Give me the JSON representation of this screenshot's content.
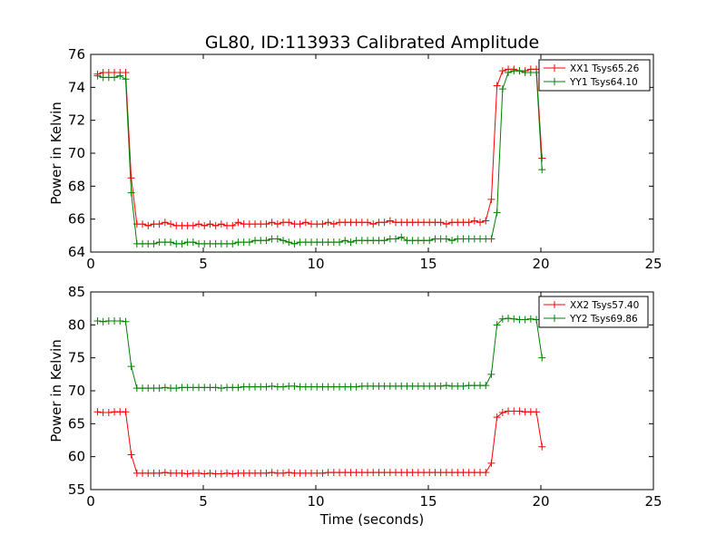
{
  "chart_data": [
    {
      "type": "line",
      "title": "GL80, ID:113933 Calibrated Amplitude",
      "xlabel": "",
      "ylabel": "Power in Kelvin",
      "xlim": [
        0,
        25
      ],
      "ylim": [
        64,
        76
      ],
      "xticks": [
        "0",
        "5",
        "10",
        "15",
        "20",
        "25"
      ],
      "yticks": [
        "64",
        "66",
        "68",
        "70",
        "72",
        "74",
        "76"
      ],
      "grid": false,
      "legend": "top-right",
      "series": [
        {
          "name": "XX1 Tsys65.26",
          "color": "#ff0000",
          "x": [
            0.3,
            0.55,
            0.8,
            1.05,
            1.3,
            1.55,
            1.8,
            2.05,
            2.3,
            2.55,
            2.8,
            3.05,
            3.3,
            3.55,
            3.8,
            4.05,
            4.3,
            4.55,
            4.8,
            5.05,
            5.3,
            5.55,
            5.8,
            6.05,
            6.3,
            6.55,
            6.8,
            7.05,
            7.3,
            7.55,
            7.8,
            8.05,
            8.3,
            8.55,
            8.8,
            9.05,
            9.3,
            9.55,
            9.8,
            10.05,
            10.3,
            10.55,
            10.8,
            11.05,
            11.3,
            11.55,
            11.8,
            12.05,
            12.3,
            12.55,
            12.8,
            13.05,
            13.3,
            13.55,
            13.8,
            14.05,
            14.3,
            14.55,
            14.8,
            15.05,
            15.3,
            15.55,
            15.8,
            16.05,
            16.3,
            16.55,
            16.8,
            17.05,
            17.3,
            17.55,
            17.8,
            18.05,
            18.3,
            18.55,
            18.8,
            19.05,
            19.3,
            19.55,
            19.8,
            20.05
          ],
          "y": [
            74.8,
            74.9,
            74.9,
            74.9,
            74.9,
            74.9,
            68.5,
            65.7,
            65.7,
            65.6,
            65.7,
            65.7,
            65.8,
            65.7,
            65.6,
            65.6,
            65.6,
            65.6,
            65.7,
            65.6,
            65.7,
            65.6,
            65.7,
            65.6,
            65.6,
            65.8,
            65.7,
            65.7,
            65.7,
            65.7,
            65.7,
            65.8,
            65.7,
            65.8,
            65.8,
            65.7,
            65.7,
            65.8,
            65.7,
            65.7,
            65.7,
            65.8,
            65.7,
            65.8,
            65.8,
            65.8,
            65.8,
            65.8,
            65.8,
            65.7,
            65.8,
            65.8,
            65.9,
            65.8,
            65.8,
            65.8,
            65.8,
            65.8,
            65.8,
            65.8,
            65.8,
            65.8,
            65.7,
            65.8,
            65.8,
            65.8,
            65.8,
            65.9,
            65.8,
            65.9,
            67.2,
            74.1,
            75.0,
            75.1,
            75.1,
            75.0,
            75.0,
            75.1,
            75.1,
            69.7
          ]
        },
        {
          "name": "YY1 Tsys64.10",
          "color": "#008000",
          "x": [
            0.3,
            0.55,
            0.8,
            1.05,
            1.3,
            1.55,
            1.8,
            2.05,
            2.3,
            2.55,
            2.8,
            3.05,
            3.3,
            3.55,
            3.8,
            4.05,
            4.3,
            4.55,
            4.8,
            5.05,
            5.3,
            5.55,
            5.8,
            6.05,
            6.3,
            6.55,
            6.8,
            7.05,
            7.3,
            7.55,
            7.8,
            8.05,
            8.3,
            8.55,
            8.8,
            9.05,
            9.3,
            9.55,
            9.8,
            10.05,
            10.3,
            10.55,
            10.8,
            11.05,
            11.3,
            11.55,
            11.8,
            12.05,
            12.3,
            12.55,
            12.8,
            13.05,
            13.3,
            13.55,
            13.8,
            14.05,
            14.3,
            14.55,
            14.8,
            15.05,
            15.3,
            15.55,
            15.8,
            16.05,
            16.3,
            16.55,
            16.8,
            17.05,
            17.3,
            17.55,
            17.8,
            18.05,
            18.3,
            18.55,
            18.8,
            19.05,
            19.3,
            19.55,
            19.8,
            20.05
          ],
          "y": [
            74.7,
            74.6,
            74.6,
            74.6,
            74.7,
            74.5,
            67.6,
            64.5,
            64.5,
            64.5,
            64.5,
            64.6,
            64.6,
            64.6,
            64.5,
            64.5,
            64.6,
            64.6,
            64.5,
            64.5,
            64.5,
            64.5,
            64.5,
            64.5,
            64.5,
            64.6,
            64.6,
            64.6,
            64.7,
            64.7,
            64.7,
            64.8,
            64.8,
            64.7,
            64.6,
            64.5,
            64.6,
            64.6,
            64.6,
            64.6,
            64.6,
            64.6,
            64.6,
            64.6,
            64.7,
            64.6,
            64.7,
            64.7,
            64.7,
            64.7,
            64.7,
            64.7,
            64.8,
            64.8,
            64.9,
            64.7,
            64.7,
            64.7,
            64.7,
            64.7,
            64.8,
            64.8,
            64.8,
            64.7,
            64.8,
            64.8,
            64.8,
            64.8,
            64.8,
            64.8,
            64.8,
            66.4,
            73.9,
            74.9,
            75.0,
            75.0,
            74.9,
            74.9,
            74.9,
            69.0
          ]
        }
      ]
    },
    {
      "type": "line",
      "title": "",
      "xlabel": "Time (seconds)",
      "ylabel": "Power in Kelvin",
      "xlim": [
        0,
        25
      ],
      "ylim": [
        55,
        85
      ],
      "xticks": [
        "0",
        "5",
        "10",
        "15",
        "20",
        "25"
      ],
      "yticks": [
        "55",
        "60",
        "65",
        "70",
        "75",
        "80",
        "85"
      ],
      "grid": false,
      "legend": "top-right",
      "series": [
        {
          "name": "XX2 Tsys57.40",
          "color": "#ff0000",
          "x": [
            0.3,
            0.55,
            0.8,
            1.05,
            1.3,
            1.55,
            1.8,
            2.05,
            2.3,
            2.55,
            2.8,
            3.05,
            3.3,
            3.55,
            3.8,
            4.05,
            4.3,
            4.55,
            4.8,
            5.05,
            5.3,
            5.55,
            5.8,
            6.05,
            6.3,
            6.55,
            6.8,
            7.05,
            7.3,
            7.55,
            7.8,
            8.05,
            8.3,
            8.55,
            8.8,
            9.05,
            9.3,
            9.55,
            9.8,
            10.05,
            10.3,
            10.55,
            10.8,
            11.05,
            11.3,
            11.55,
            11.8,
            12.05,
            12.3,
            12.55,
            12.8,
            13.05,
            13.3,
            13.55,
            13.8,
            14.05,
            14.3,
            14.55,
            14.8,
            15.05,
            15.3,
            15.55,
            15.8,
            16.05,
            16.3,
            16.55,
            16.8,
            17.05,
            17.3,
            17.55,
            17.8,
            18.05,
            18.3,
            18.55,
            18.8,
            19.05,
            19.3,
            19.55,
            19.8,
            20.05
          ],
          "y": [
            66.8,
            66.7,
            66.7,
            66.8,
            66.8,
            66.8,
            60.3,
            57.5,
            57.5,
            57.5,
            57.5,
            57.5,
            57.6,
            57.5,
            57.5,
            57.5,
            57.4,
            57.5,
            57.5,
            57.4,
            57.5,
            57.4,
            57.4,
            57.5,
            57.4,
            57.5,
            57.5,
            57.5,
            57.5,
            57.5,
            57.5,
            57.6,
            57.5,
            57.5,
            57.6,
            57.5,
            57.5,
            57.5,
            57.5,
            57.5,
            57.5,
            57.6,
            57.6,
            57.6,
            57.6,
            57.6,
            57.6,
            57.6,
            57.6,
            57.6,
            57.6,
            57.6,
            57.6,
            57.6,
            57.6,
            57.6,
            57.6,
            57.6,
            57.6,
            57.6,
            57.6,
            57.6,
            57.6,
            57.6,
            57.6,
            57.6,
            57.6,
            57.6,
            57.6,
            57.6,
            59.0,
            66.0,
            66.7,
            66.9,
            66.9,
            66.9,
            66.8,
            66.8,
            66.8,
            61.5
          ]
        },
        {
          "name": "YY2 Tsys69.86",
          "color": "#008000",
          "x": [
            0.3,
            0.55,
            0.8,
            1.05,
            1.3,
            1.55,
            1.8,
            2.05,
            2.3,
            2.55,
            2.8,
            3.05,
            3.3,
            3.55,
            3.8,
            4.05,
            4.3,
            4.55,
            4.8,
            5.05,
            5.3,
            5.55,
            5.8,
            6.05,
            6.3,
            6.55,
            6.8,
            7.05,
            7.3,
            7.55,
            7.8,
            8.05,
            8.3,
            8.55,
            8.8,
            9.05,
            9.3,
            9.55,
            9.8,
            10.05,
            10.3,
            10.55,
            10.8,
            11.05,
            11.3,
            11.55,
            11.8,
            12.05,
            12.3,
            12.55,
            12.8,
            13.05,
            13.3,
            13.55,
            13.8,
            14.05,
            14.3,
            14.55,
            14.8,
            15.05,
            15.3,
            15.55,
            15.8,
            16.05,
            16.3,
            16.55,
            16.8,
            17.05,
            17.3,
            17.55,
            17.8,
            18.05,
            18.3,
            18.55,
            18.8,
            19.05,
            19.3,
            19.55,
            19.8,
            20.05
          ],
          "y": [
            80.6,
            80.5,
            80.6,
            80.6,
            80.6,
            80.5,
            73.7,
            70.4,
            70.4,
            70.4,
            70.4,
            70.4,
            70.5,
            70.4,
            70.4,
            70.5,
            70.5,
            70.5,
            70.5,
            70.5,
            70.5,
            70.5,
            70.4,
            70.5,
            70.5,
            70.5,
            70.6,
            70.6,
            70.6,
            70.6,
            70.6,
            70.7,
            70.6,
            70.6,
            70.7,
            70.7,
            70.6,
            70.6,
            70.6,
            70.6,
            70.6,
            70.6,
            70.6,
            70.6,
            70.6,
            70.6,
            70.6,
            70.7,
            70.7,
            70.7,
            70.7,
            70.7,
            70.7,
            70.7,
            70.7,
            70.7,
            70.7,
            70.7,
            70.7,
            70.7,
            70.7,
            70.7,
            70.8,
            70.7,
            70.7,
            70.7,
            70.8,
            70.8,
            70.8,
            70.8,
            72.5,
            80.0,
            80.9,
            81.0,
            80.9,
            80.8,
            80.8,
            80.9,
            80.8,
            75.0
          ]
        }
      ]
    }
  ]
}
